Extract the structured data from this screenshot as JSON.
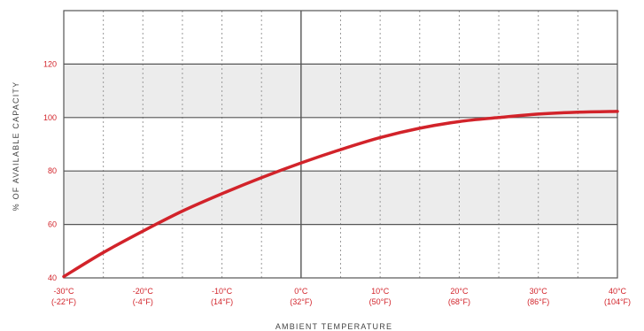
{
  "chart_data": {
    "type": "line",
    "title": "",
    "xlabel": "AMBIENT TEMPERATURE",
    "ylabel": "% OF AVAILABLE CAPACITY",
    "xlim": [
      -30,
      40
    ],
    "ylim": [
      40,
      140
    ],
    "yticks": [
      40,
      60,
      80,
      100,
      120
    ],
    "xticks": [
      {
        "value": -30,
        "c": "-30°C",
        "f": "(-22°F)"
      },
      {
        "value": -20,
        "c": "-20°C",
        "f": "(-4°F)"
      },
      {
        "value": -10,
        "c": "-10°C",
        "f": "(14°F)"
      },
      {
        "value": 0,
        "c": "0°C",
        "f": "(32°F)"
      },
      {
        "value": 10,
        "c": "10°C",
        "f": "(50°F)"
      },
      {
        "value": 20,
        "c": "20°C",
        "f": "(68°F)"
      },
      {
        "value": 30,
        "c": "30°C",
        "f": "(86°F)"
      },
      {
        "value": 40,
        "c": "40°C",
        "f": "(104°F)"
      }
    ],
    "x_gridlines": [
      -30,
      -25,
      -20,
      -15,
      -10,
      -5,
      0,
      5,
      10,
      15,
      20,
      25,
      30,
      35,
      40
    ],
    "shaded_bands": [
      [
        60,
        80
      ],
      [
        100,
        120
      ]
    ],
    "grid": true,
    "legend": "none",
    "series": [
      {
        "color": "#d2232a",
        "x": [
          -30,
          -25,
          -20,
          -15,
          -10,
          -5,
          0,
          5,
          10,
          15,
          20,
          25,
          30,
          35,
          40
        ],
        "y": [
          40.5,
          49.5,
          57.5,
          65,
          71.5,
          77.5,
          83,
          88,
          92.5,
          96,
          98.5,
          100,
          101.3,
          102,
          102.3
        ]
      }
    ]
  }
}
